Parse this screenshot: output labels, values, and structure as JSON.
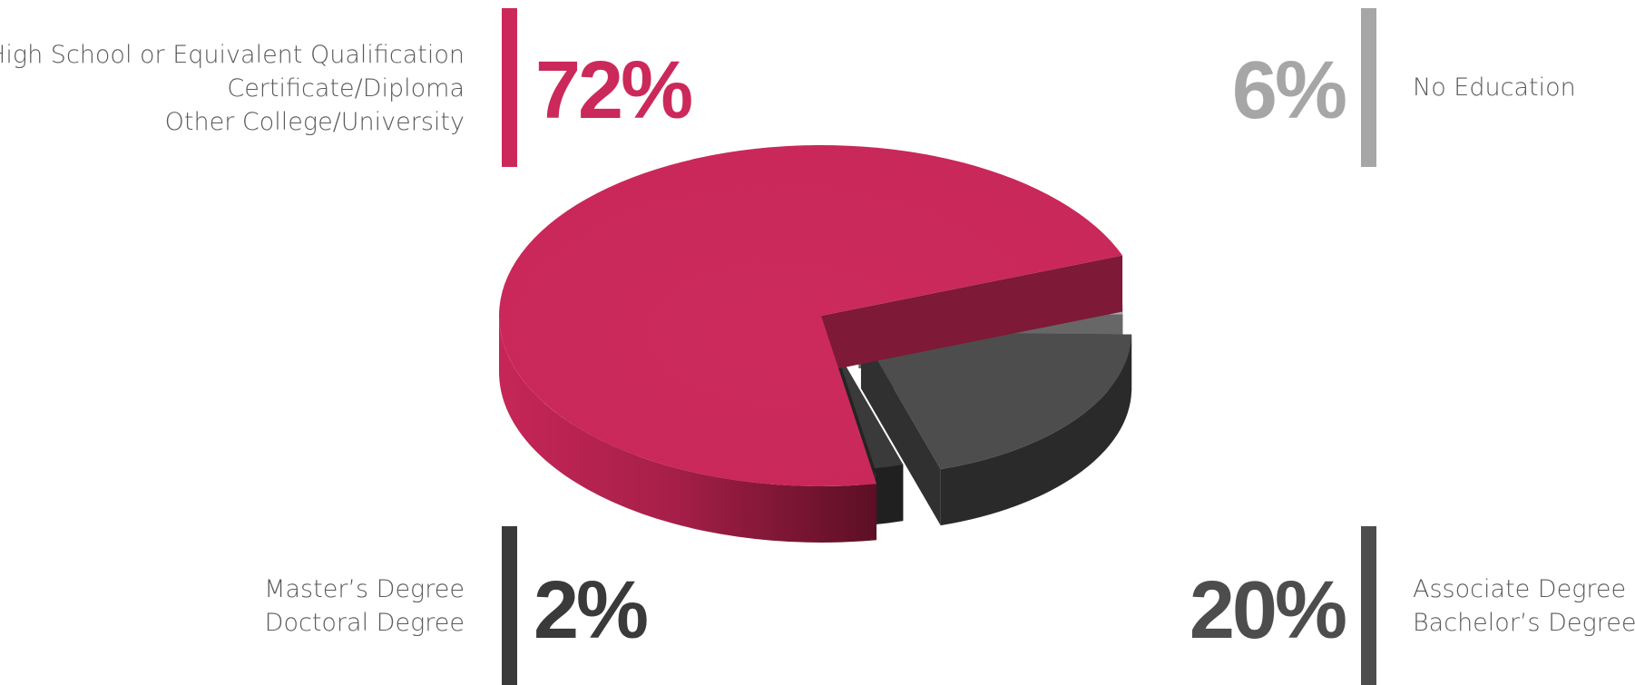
{
  "chart_data": {
    "type": "pie",
    "style": "3d-exploded",
    "slices": [
      {
        "key": "top_left",
        "value": 72,
        "display": "72%",
        "color": "#cc295b",
        "categories": [
          "High School or Equivalent Qualification",
          "Certificate/Diploma",
          "Other College/University"
        ]
      },
      {
        "key": "top_right",
        "value": 6,
        "display": "6%",
        "color": "#a6a6a6",
        "categories": [
          "No Education"
        ]
      },
      {
        "key": "bottom_right",
        "value": 20,
        "display": "20%",
        "color": "#4d4d4d",
        "categories": [
          "Associate Degree",
          "Bachelor’s Degree"
        ]
      },
      {
        "key": "bottom_left",
        "value": 2,
        "display": "2%",
        "color": "#3a3a3a",
        "categories": [
          "Master’s Degree",
          "Doctoral Degree"
        ]
      }
    ],
    "legend_placement": "corners"
  }
}
